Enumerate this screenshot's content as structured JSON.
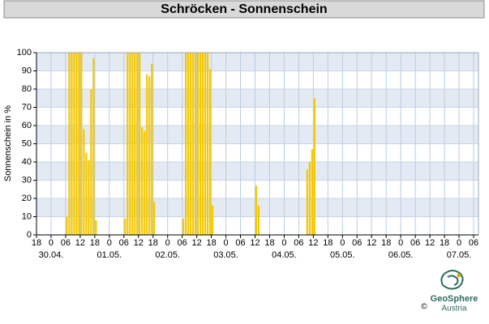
{
  "chart_data": {
    "type": "bar",
    "title": "Schröcken - Sonnenschein",
    "y_label": "Sonnenschein in %",
    "x": [
      12.5,
      13.5,
      14.5,
      15.5,
      16.5,
      17.5,
      18.5,
      19.5,
      20.5,
      21.5,
      22.5,
      23.5,
      24.5,
      36.5,
      37.5,
      38.5,
      39.5,
      40.5,
      41.5,
      42.5,
      43.5,
      44.5,
      45.5,
      46.5,
      47.5,
      48.5,
      60.5,
      61.5,
      62.5,
      63.5,
      64.5,
      65.5,
      66.5,
      67.5,
      68.5,
      69.5,
      70.5,
      71.5,
      72.5,
      90.5,
      91.5,
      111.5,
      112.5,
      113.5,
      114.5
    ],
    "values": [
      10,
      100,
      100,
      100,
      100,
      100,
      100,
      58,
      45,
      41,
      80,
      97,
      8,
      9,
      100,
      100,
      100,
      100,
      100,
      100,
      59,
      57,
      88,
      87,
      94,
      18,
      9,
      100,
      100,
      100,
      100,
      100,
      100,
      100,
      100,
      100,
      100,
      91,
      16,
      27,
      16,
      36,
      40,
      47,
      75
    ],
    "color": "#f5c800",
    "xlim": [
      0,
      182
    ],
    "ylim": [
      0,
      100
    ],
    "xticks": [
      {
        "value": 0,
        "label": "18"
      },
      {
        "value": 6,
        "label": "0"
      },
      {
        "value": 12,
        "label": "06"
      },
      {
        "value": 18,
        "label": "12"
      },
      {
        "value": 24,
        "label": "18"
      },
      {
        "value": 30,
        "label": "0"
      },
      {
        "value": 36,
        "label": "06"
      },
      {
        "value": 42,
        "label": "12"
      },
      {
        "value": 48,
        "label": "18"
      },
      {
        "value": 54,
        "label": "0"
      },
      {
        "value": 60,
        "label": "06"
      },
      {
        "value": 66,
        "label": "12"
      },
      {
        "value": 72,
        "label": "18"
      },
      {
        "value": 78,
        "label": "0"
      },
      {
        "value": 84,
        "label": "06"
      },
      {
        "value": 90,
        "label": "12"
      },
      {
        "value": 96,
        "label": "18"
      },
      {
        "value": 102,
        "label": "0"
      },
      {
        "value": 108,
        "label": "06"
      },
      {
        "value": 114,
        "label": "12"
      },
      {
        "value": 120,
        "label": "18"
      },
      {
        "value": 126,
        "label": "0"
      },
      {
        "value": 132,
        "label": "06"
      },
      {
        "value": 138,
        "label": "12"
      },
      {
        "value": 144,
        "label": "18"
      },
      {
        "value": 150,
        "label": "0"
      },
      {
        "value": 156,
        "label": "06"
      },
      {
        "value": 162,
        "label": "12"
      },
      {
        "value": 168,
        "label": "18"
      },
      {
        "value": 174,
        "label": "0"
      },
      {
        "value": 180,
        "label": "06"
      }
    ],
    "date_labels": [
      {
        "value": 6,
        "label": "30.04."
      },
      {
        "value": 30,
        "label": "01.05."
      },
      {
        "value": 54,
        "label": "02.05."
      },
      {
        "value": 78,
        "label": "03.05."
      },
      {
        "value": 102,
        "label": "04.05."
      },
      {
        "value": 126,
        "label": "05.05."
      },
      {
        "value": 150,
        "label": "06.05."
      },
      {
        "value": 174,
        "label": "07.05."
      }
    ],
    "yticks": [
      0,
      10,
      20,
      30,
      40,
      50,
      60,
      70,
      80,
      90,
      100
    ],
    "grid": true
  },
  "logo": {
    "name": "GeoSphere",
    "sub": "Austria",
    "copyright": "©"
  }
}
